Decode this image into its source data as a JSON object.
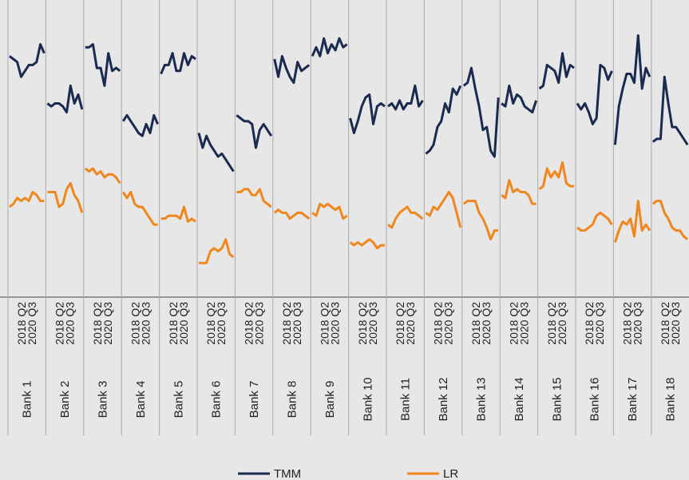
{
  "chart_data": {
    "type": "line",
    "categories": [
      "2018 Q2",
      null,
      null,
      null,
      null,
      null,
      null,
      null,
      null,
      "2020 Q3"
    ],
    "ylim": [
      0,
      100
    ],
    "series": [
      {
        "name": "TMM",
        "color": "#1b2a4f"
      },
      {
        "name": "LR",
        "color": "#f0871e"
      }
    ],
    "panels": [
      {
        "name": "Bank 1",
        "series": [
          {
            "values": [
              81,
              80,
              79,
              74,
              76,
              78,
              78,
              79,
              85,
              82
            ]
          },
          {
            "values": [
              30,
              31,
              33,
              32,
              33,
              32,
              35,
              34,
              32,
              32
            ]
          }
        ]
      },
      {
        "name": "Bank 2",
        "series": [
          {
            "values": [
              65,
              64,
              65,
              65,
              64,
              62,
              71,
              65,
              68,
              63
            ]
          },
          {
            "values": [
              35,
              35,
              35,
              30,
              31,
              36,
              38,
              34,
              32,
              28
            ]
          }
        ]
      },
      {
        "name": "Bank 3",
        "series": [
          {
            "values": [
              84,
              84,
              85,
              77,
              77,
              71,
              82,
              76,
              77,
              76
            ]
          },
          {
            "values": [
              43,
              42,
              43,
              41,
              42,
              40,
              41,
              41,
              40,
              38
            ]
          }
        ]
      },
      {
        "name": "Bank 4",
        "series": [
          {
            "values": [
              59,
              61,
              59,
              57,
              55,
              54,
              58,
              55,
              61,
              58
            ]
          },
          {
            "values": [
              35,
              33,
              35,
              31,
              30,
              30,
              28,
              26,
              24,
              24
            ]
          }
        ]
      },
      {
        "name": "Bank 5",
        "series": [
          {
            "values": [
              75,
              78,
              78,
              82,
              76,
              76,
              82,
              78,
              81,
              80
            ]
          },
          {
            "values": [
              26,
              26,
              27,
              27,
              27,
              26,
              30,
              25,
              26,
              25
            ]
          }
        ]
      },
      {
        "name": "Bank 6",
        "series": [
          {
            "values": [
              55,
              50,
              54,
              51,
              49,
              47,
              48,
              46,
              44,
              42
            ]
          },
          {
            "values": [
              11,
              11,
              11,
              15,
              16,
              15,
              16,
              19,
              14,
              13
            ]
          }
        ]
      },
      {
        "name": "Bank 7",
        "series": [
          {
            "values": [
              61,
              60,
              59,
              59,
              58,
              50,
              56,
              58,
              56,
              54
            ]
          },
          {
            "values": [
              35,
              35,
              36,
              36,
              34,
              34,
              36,
              32,
              31,
              30
            ]
          }
        ]
      },
      {
        "name": "Bank 8",
        "series": [
          {
            "values": [
              80,
              74,
              81,
              77,
              74,
              72,
              79,
              76,
              77,
              78
            ]
          },
          {
            "values": [
              28,
              29,
              28,
              28,
              26,
              27,
              28,
              28,
              27,
              26
            ]
          }
        ]
      },
      {
        "name": "Bank 9",
        "series": [
          {
            "values": [
              81,
              84,
              81,
              87,
              82,
              85,
              83,
              87,
              84,
              85
            ]
          },
          {
            "values": [
              28,
              27,
              31,
              30,
              31,
              30,
              29,
              30,
              26,
              27
            ]
          }
        ]
      },
      {
        "name": "Bank 10",
        "series": [
          {
            "values": [
              60,
              55,
              59,
              64,
              67,
              68,
              58,
              64,
              65,
              64
            ]
          },
          {
            "values": [
              18,
              17,
              18,
              17,
              18,
              19,
              18,
              16,
              17,
              17
            ]
          }
        ]
      },
      {
        "name": "Bank 11",
        "series": [
          {
            "values": [
              64,
              65,
              63,
              66,
              63,
              65,
              65,
              71,
              64,
              66
            ]
          },
          {
            "values": [
              24,
              23,
              26,
              28,
              29,
              30,
              28,
              28,
              27,
              26
            ]
          }
        ]
      },
      {
        "name": "Bank 12",
        "series": [
          {
            "values": [
              48,
              49,
              51,
              57,
              59,
              65,
              62,
              70,
              68,
              71
            ]
          },
          {
            "values": [
              28,
              27,
              30,
              29,
              31,
              33,
              35,
              33,
              28,
              23
            ]
          }
        ]
      },
      {
        "name": "Bank 13",
        "series": [
          {
            "values": [
              71,
              72,
              77,
              70,
              64,
              56,
              57,
              49,
              47,
              67
            ]
          },
          {
            "values": [
              31,
              32,
              32,
              32,
              28,
              26,
              23,
              19,
              22,
              22
            ]
          }
        ]
      },
      {
        "name": "Bank 14",
        "series": [
          {
            "values": [
              65,
              64,
              71,
              65,
              68,
              67,
              64,
              63,
              62,
              66
            ]
          },
          {
            "values": [
              34,
              33,
              39,
              35,
              36,
              35,
              35,
              34,
              31,
              31
            ]
          }
        ]
      },
      {
        "name": "Bank 15",
        "series": [
          {
            "values": [
              70,
              71,
              78,
              77,
              76,
              72,
              82,
              74,
              78,
              77
            ]
          },
          {
            "values": [
              36,
              37,
              43,
              40,
              42,
              40,
              45,
              38,
              37,
              37
            ]
          }
        ]
      },
      {
        "name": "Bank 16",
        "series": [
          {
            "values": [
              65,
              63,
              65,
              62,
              58,
              60,
              78,
              77,
              73,
              76
            ]
          },
          {
            "values": [
              23,
              22,
              22,
              23,
              24,
              27,
              28,
              27,
              26,
              24
            ]
          }
        ]
      },
      {
        "name": "Bank 17",
        "series": [
          {
            "values": [
              51,
              64,
              70,
              75,
              75,
              72,
              88,
              70,
              77,
              74
            ]
          },
          {
            "values": [
              18,
              22,
              25,
              24,
              26,
              20,
              32,
              22,
              24,
              22
            ]
          }
        ]
      },
      {
        "name": "Bank 18",
        "series": [
          {
            "values": [
              52,
              53,
              53,
              74,
              65,
              57,
              57,
              55,
              53,
              51
            ]
          },
          {
            "values": [
              31,
              32,
              32,
              28,
              26,
              23,
              22,
              22,
              20,
              19
            ]
          }
        ]
      }
    ]
  }
}
